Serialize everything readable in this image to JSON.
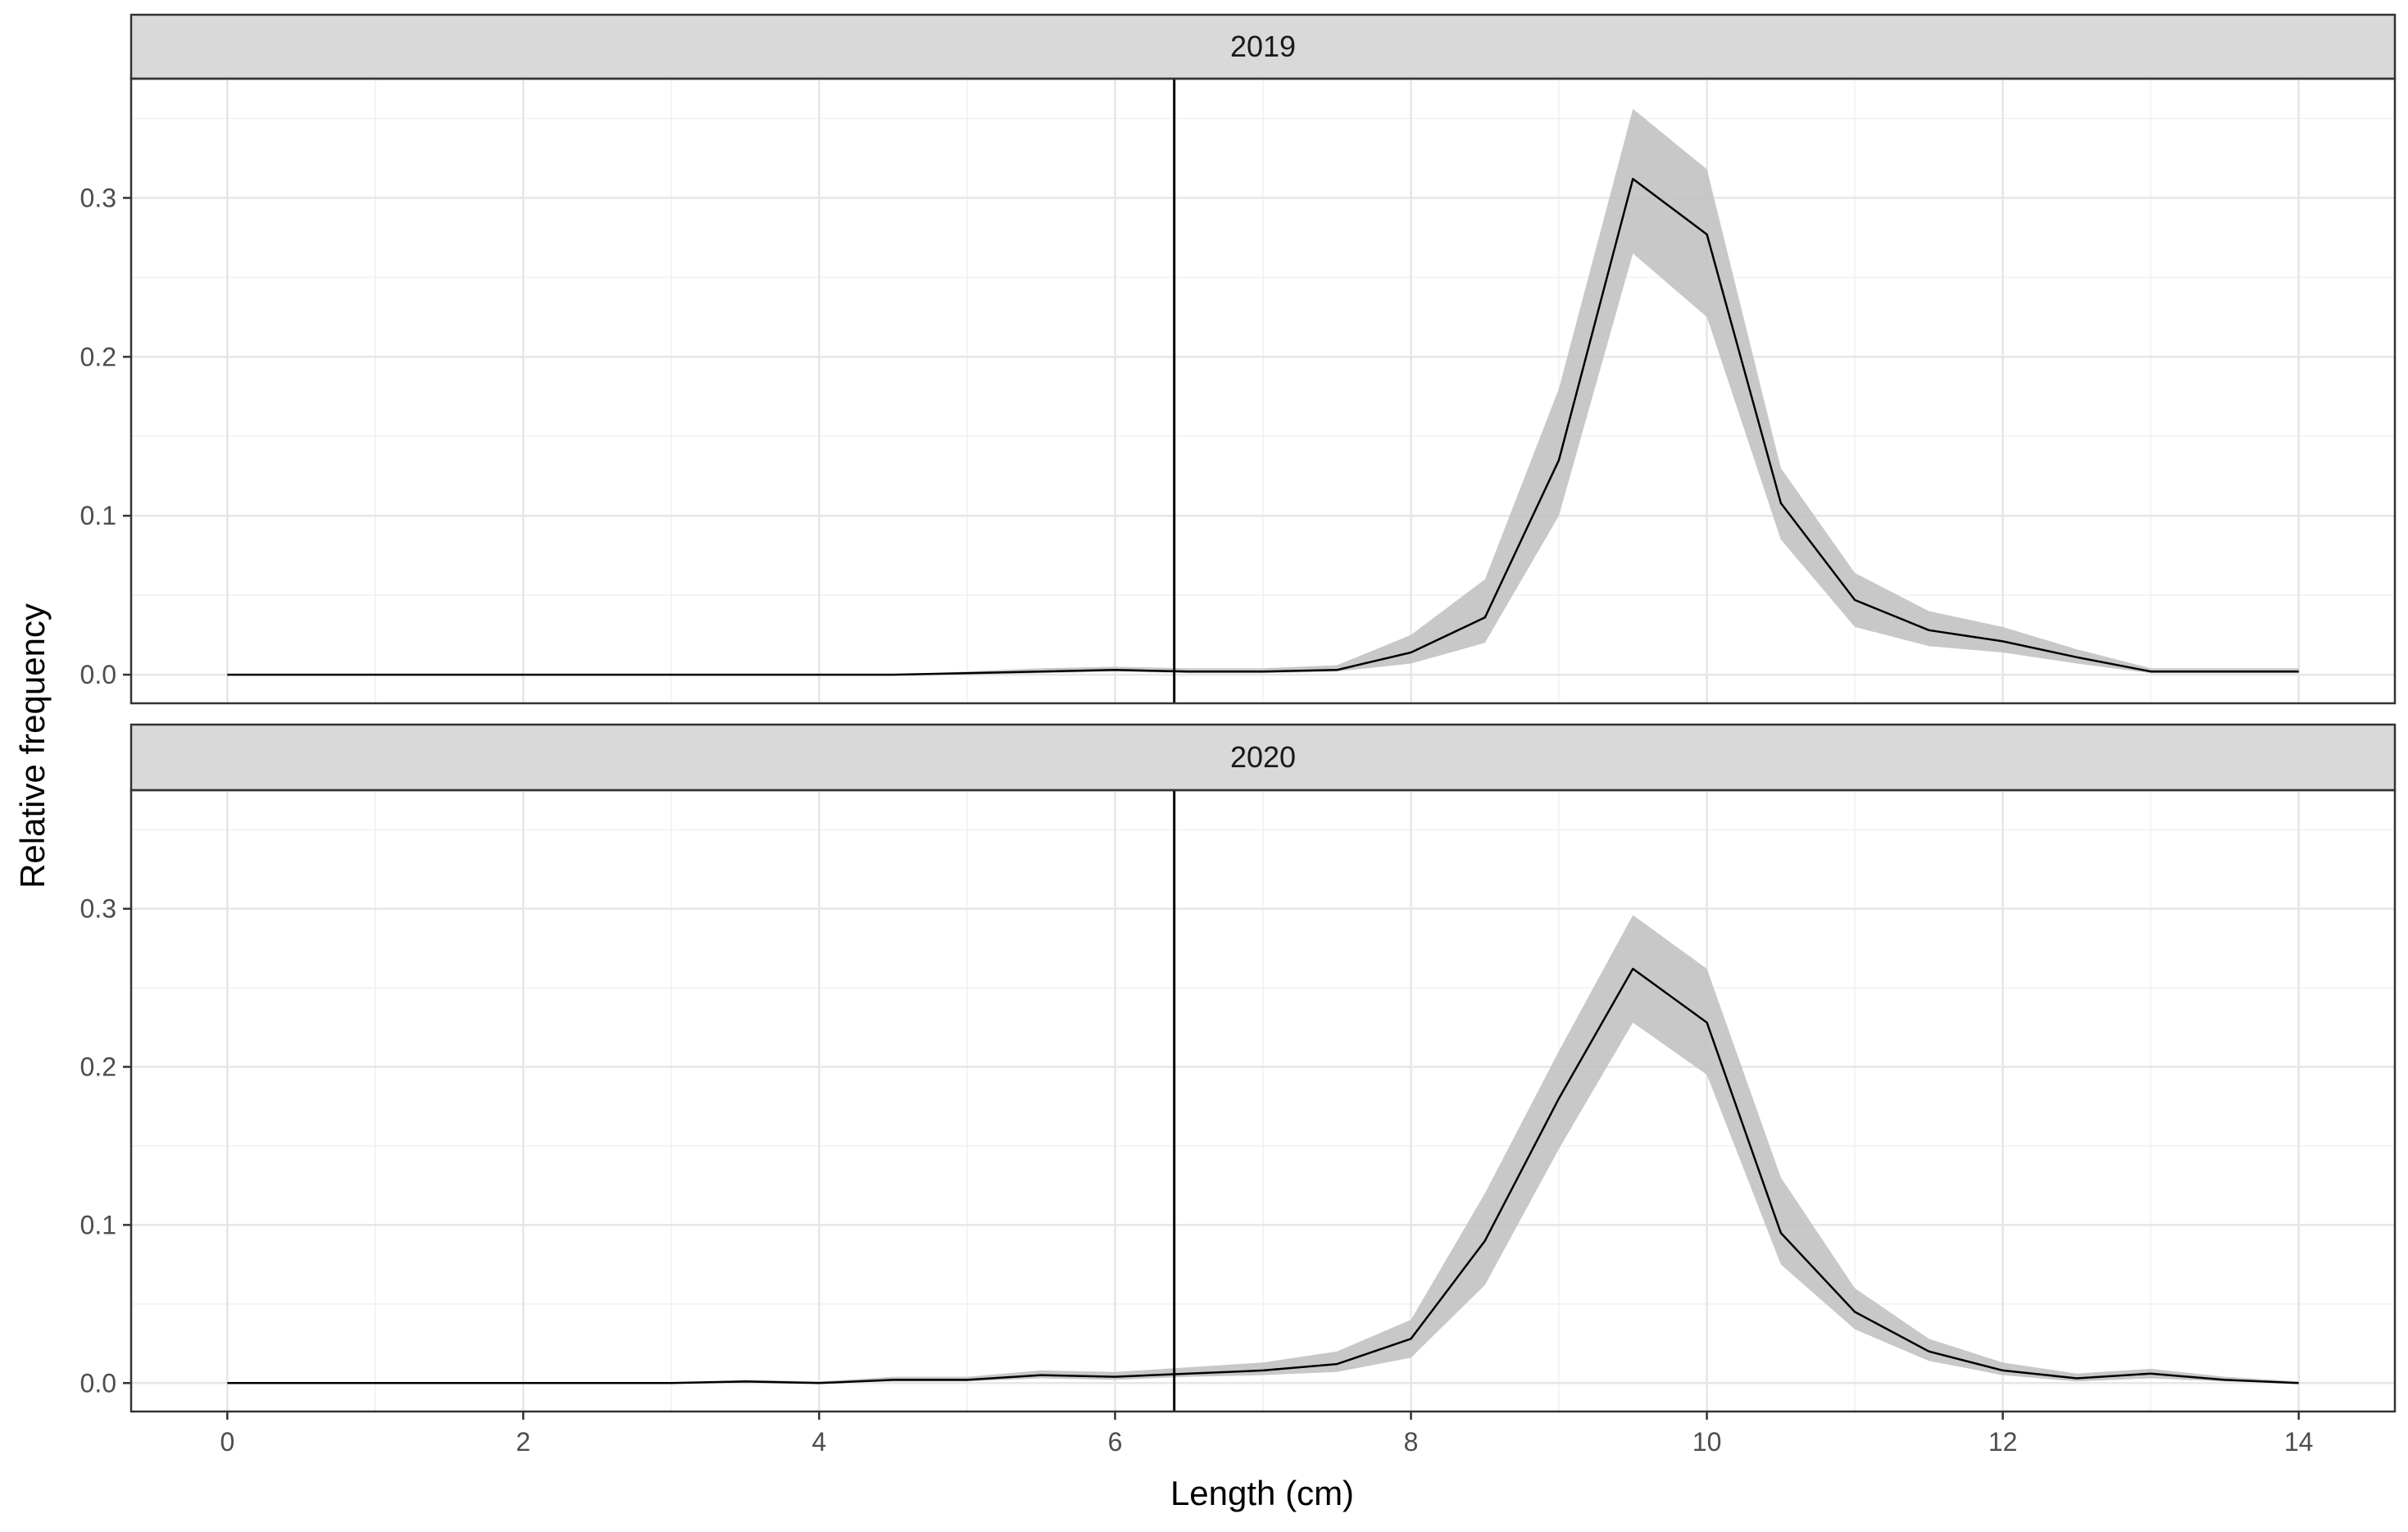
{
  "chart_data": {
    "type": "line",
    "layout": "facet-vertical",
    "xlabel": "Length (cm)",
    "ylabel": "Relative frequency",
    "xlim": [
      -0.65,
      14.65
    ],
    "ylim": [
      -0.018,
      0.375
    ],
    "x_ticks": [
      0,
      2,
      4,
      6,
      8,
      10,
      12,
      14
    ],
    "x_tick_labels": [
      "0",
      "2",
      "4",
      "6",
      "8",
      "10",
      "12",
      "14"
    ],
    "y_ticks": [
      0.0,
      0.1,
      0.2,
      0.3
    ],
    "y_tick_labels": [
      "0.0",
      "0.1",
      "0.2",
      "0.3"
    ],
    "grid": true,
    "vline": 6.4,
    "ribbon_color": "#bebebe",
    "line_color": "#000000",
    "strip_color": "#d9d9d9",
    "panels": [
      {
        "label": "2019",
        "x": [
          0,
          0.5,
          1,
          1.5,
          2,
          2.5,
          3,
          3.5,
          4,
          4.5,
          5,
          5.5,
          6,
          6.5,
          7,
          7.5,
          8,
          8.5,
          9,
          9.5,
          10,
          10.5,
          11,
          11.5,
          12,
          12.5,
          13,
          13.5,
          14
        ],
        "y": [
          0,
          0,
          0,
          0,
          0,
          0,
          0,
          0,
          0,
          0,
          0.001,
          0.002,
          0.003,
          0.002,
          0.002,
          0.003,
          0.014,
          0.036,
          0.135,
          0.312,
          0.277,
          0.108,
          0.047,
          0.028,
          0.021,
          0.011,
          0.002,
          0.002,
          0.002
        ],
        "lower": [
          0,
          0,
          0,
          0,
          0,
          0,
          0,
          0,
          0,
          0,
          0,
          0.001,
          0.002,
          0.001,
          0.001,
          0.002,
          0.007,
          0.02,
          0.1,
          0.265,
          0.225,
          0.085,
          0.03,
          0.018,
          0.014,
          0.007,
          0.001,
          0.001,
          0.001
        ],
        "upper": [
          0,
          0,
          0,
          0,
          0,
          0,
          0,
          0,
          0,
          0,
          0.002,
          0.004,
          0.005,
          0.004,
          0.004,
          0.006,
          0.025,
          0.06,
          0.18,
          0.356,
          0.318,
          0.13,
          0.064,
          0.04,
          0.03,
          0.016,
          0.004,
          0.004,
          0.004
        ]
      },
      {
        "label": "2020",
        "x": [
          0,
          0.5,
          1,
          1.5,
          2,
          2.5,
          3,
          3.5,
          4,
          4.5,
          5,
          5.5,
          6,
          6.5,
          7,
          7.5,
          8,
          8.5,
          9,
          9.5,
          10,
          10.5,
          11,
          11.5,
          12,
          12.5,
          13,
          13.5,
          14
        ],
        "y": [
          0,
          0,
          0,
          0,
          0,
          0,
          0,
          0.001,
          0,
          0.002,
          0.002,
          0.005,
          0.004,
          0.006,
          0.008,
          0.012,
          0.028,
          0.09,
          0.18,
          0.262,
          0.228,
          0.095,
          0.045,
          0.02,
          0.008,
          0.003,
          0.006,
          0.002,
          0
        ],
        "lower": [
          0,
          0,
          0,
          0,
          0,
          0,
          0,
          0,
          0,
          0.001,
          0.001,
          0.003,
          0.002,
          0.004,
          0.005,
          0.007,
          0.016,
          0.062,
          0.148,
          0.228,
          0.195,
          0.075,
          0.034,
          0.014,
          0.005,
          0.001,
          0.003,
          0.001,
          0
        ],
        "upper": [
          0,
          0,
          0,
          0,
          0,
          0,
          0,
          0.002,
          0.001,
          0.004,
          0.004,
          0.008,
          0.007,
          0.01,
          0.013,
          0.02,
          0.04,
          0.12,
          0.21,
          0.296,
          0.262,
          0.13,
          0.06,
          0.028,
          0.013,
          0.006,
          0.009,
          0.004,
          0.001
        ]
      }
    ]
  }
}
